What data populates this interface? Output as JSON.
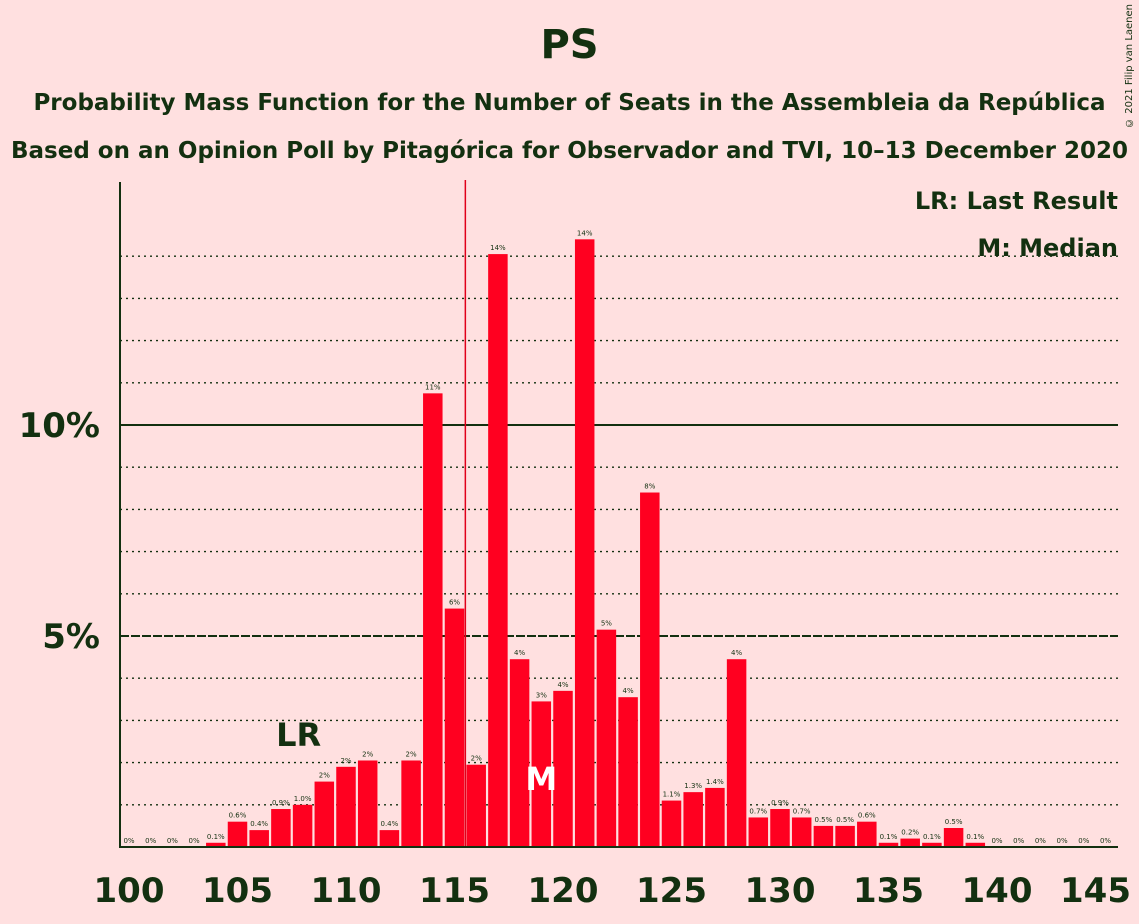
{
  "chart_data": {
    "type": "bar",
    "title": "PS",
    "subtitle": "Probability Mass Function for the Number of Seats in the Assembleia da República",
    "subtitle2": "Based on an Opinion Poll by Pitagórica for Observador and TVI, 10–13 December 2020",
    "copyright": "© 2021 Filip van Laenen",
    "legend": [
      "LR: Last Result",
      "M: Median"
    ],
    "last_result": 108,
    "last_result_label": "LR",
    "median": 119,
    "median_label": "M",
    "majority_line": 115.5,
    "xlim": [
      100,
      145
    ],
    "ylim": [
      0,
      15.7
    ],
    "x_ticks": [
      100,
      105,
      110,
      115,
      120,
      125,
      130,
      135,
      140,
      145
    ],
    "y_ticks": [
      {
        "value": 5,
        "label": "5%"
      },
      {
        "value": 10,
        "label": "10%"
      }
    ],
    "seats": [
      100,
      101,
      102,
      103,
      104,
      105,
      106,
      107,
      108,
      109,
      110,
      111,
      112,
      113,
      114,
      115,
      116,
      117,
      118,
      119,
      120,
      121,
      122,
      123,
      124,
      125,
      126,
      127,
      128,
      129,
      130,
      131,
      132,
      133,
      134,
      135,
      136,
      137,
      138,
      139,
      140,
      141,
      142,
      143,
      144,
      145
    ],
    "values": [
      0,
      0,
      0,
      0,
      0.1,
      0.6,
      0.4,
      0.9,
      1.0,
      1.55,
      1.9,
      2.05,
      0.4,
      2.05,
      10.75,
      5.65,
      1.95,
      14.05,
      4.45,
      3.45,
      3.7,
      14.4,
      5.15,
      3.55,
      8.4,
      1.1,
      1.3,
      1.4,
      4.45,
      0.7,
      0.9,
      0.7,
      0.5,
      0.5,
      0.6,
      0.1,
      0.2,
      0.1,
      0.45,
      0.1,
      0,
      0,
      0,
      0,
      0,
      0
    ],
    "labels": [
      "0%",
      "0%",
      "0%",
      "0%",
      "0.1%",
      "0.6%",
      "0.4%",
      "0.9%",
      "1.0%",
      "2%",
      "2%",
      "2%",
      "0.4%",
      "2%",
      "11%",
      "6%",
      "2%",
      "14%",
      "4%",
      "3%",
      "4%",
      "14%",
      "5%",
      "4%",
      "8%",
      "1.1%",
      "1.3%",
      "1.4%",
      "4%",
      "0.7%",
      "0.9%",
      "0.7%",
      "0.5%",
      "0.5%",
      "0.6%",
      "0.1%",
      "0.2%",
      "0.1%",
      "0.5%",
      "0.1%",
      "0%",
      "0%",
      "0%",
      "0%",
      "0%",
      "0%"
    ]
  },
  "colors": {
    "bar": "#ff0020",
    "background": "#ffe0e0",
    "text": "#133010",
    "majority_line": "#e0001a"
  }
}
